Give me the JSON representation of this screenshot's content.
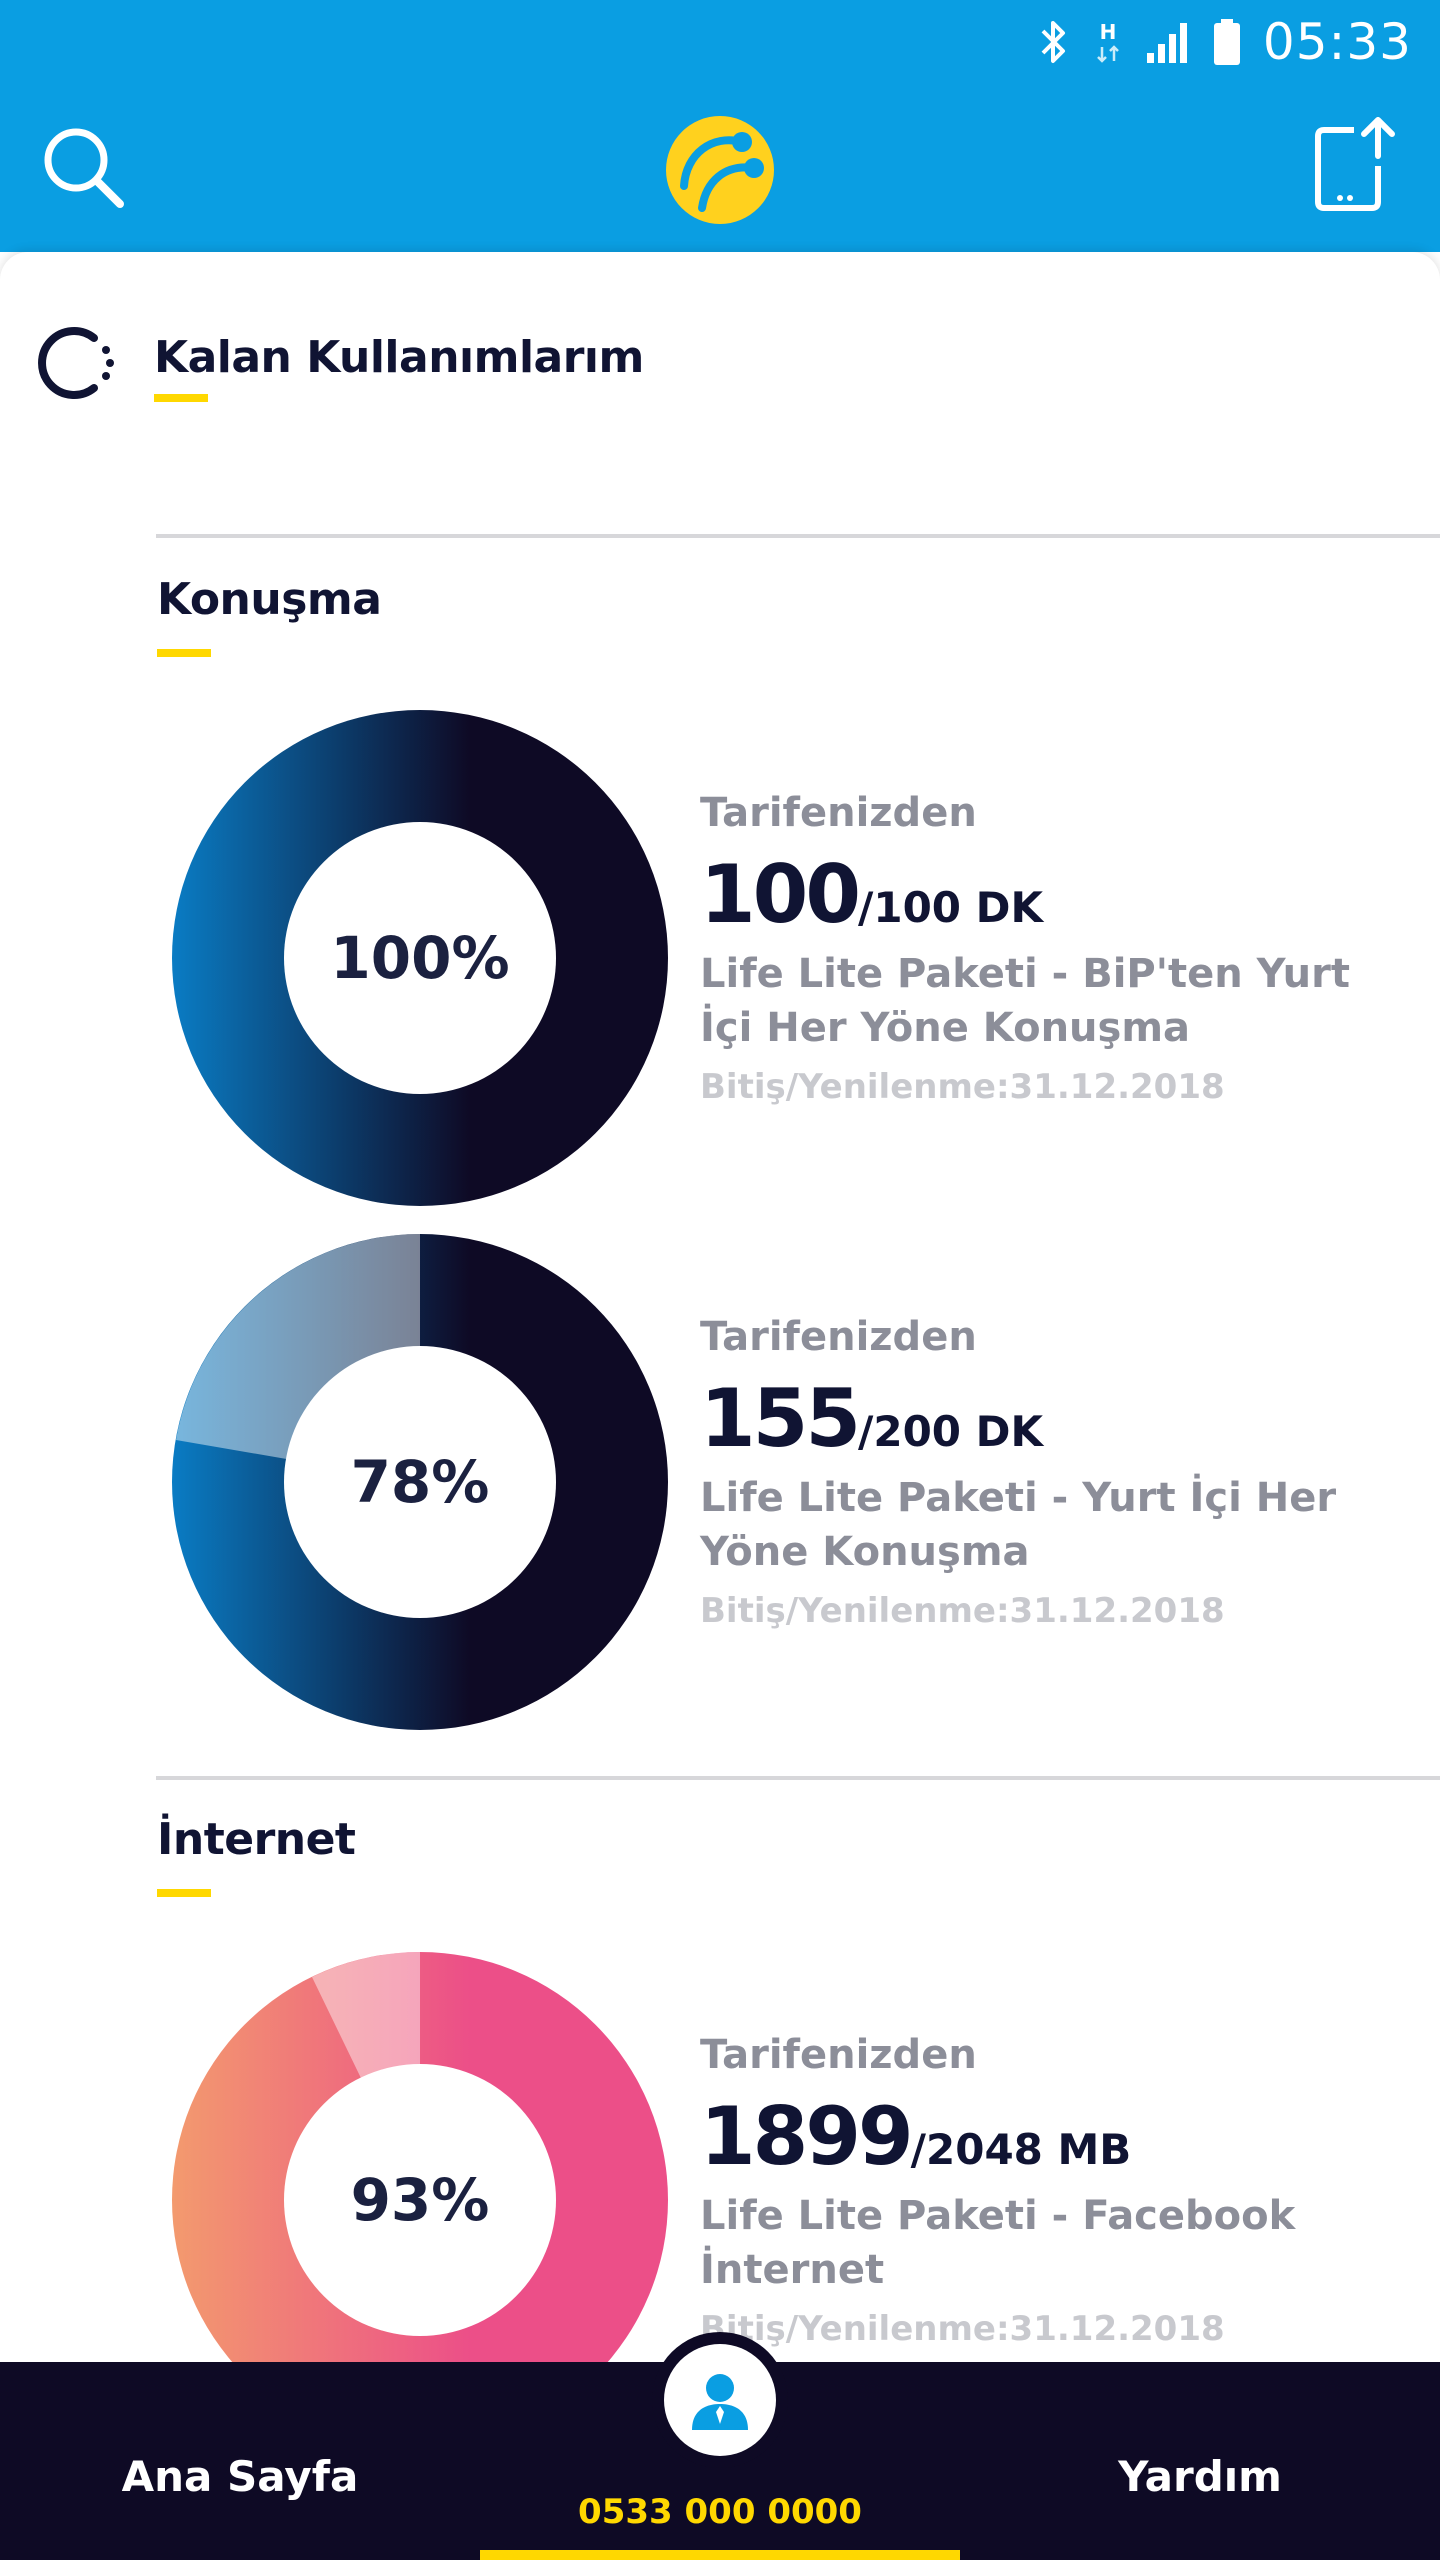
{
  "status_bar": {
    "time": "05:33",
    "network_type": "H",
    "icons": [
      "bluetooth-icon",
      "network-h-icon",
      "signal-icon",
      "battery-icon"
    ]
  },
  "header": {
    "icons": [
      "search-icon",
      "turkcell-logo",
      "share-icon"
    ]
  },
  "page": {
    "title": "Kalan Kullanımlarım"
  },
  "sections": [
    {
      "title": "Konuşma",
      "items": [
        {
          "percent_label": "100%",
          "percent": 100,
          "source": "Tarifenizden",
          "remaining": "100",
          "total": "/100 DK",
          "name": "Life Lite Paketi - BiP'ten Yurt İçi Her Yöne Konuşma",
          "expiry": "Bitiş/Yenilenme:31.12.2018"
        },
        {
          "percent_label": "78%",
          "percent": 78,
          "source": "Tarifenizden",
          "remaining": "155",
          "total": "/200 DK",
          "name": "Life Lite Paketi - Yurt İçi Her Yöne Konuşma",
          "expiry": "Bitiş/Yenilenme:31.12.2018"
        }
      ]
    },
    {
      "title": "İnternet",
      "items": [
        {
          "percent_label": "93%",
          "percent": 93,
          "source": "Tarifenizden",
          "remaining": "1899",
          "total": "/2048 MB",
          "name": "Life Lite Paketi - Facebook İnternet",
          "expiry": "Bitiş/Yenilenme:31.12.2018"
        }
      ]
    }
  ],
  "bottom_nav": {
    "home_label": "Ana Sayfa",
    "help_label": "Yardım",
    "phone": "0533 000 0000"
  },
  "colors": {
    "primary_blue": "#0a9ee2",
    "accent_yellow": "#ffd800",
    "navy": "#0e0a25",
    "talk_gradient": [
      "#0a7cc4",
      "#0e0a25"
    ],
    "internet_gradient": [
      "#f39a6e",
      "#ec4f88"
    ]
  }
}
